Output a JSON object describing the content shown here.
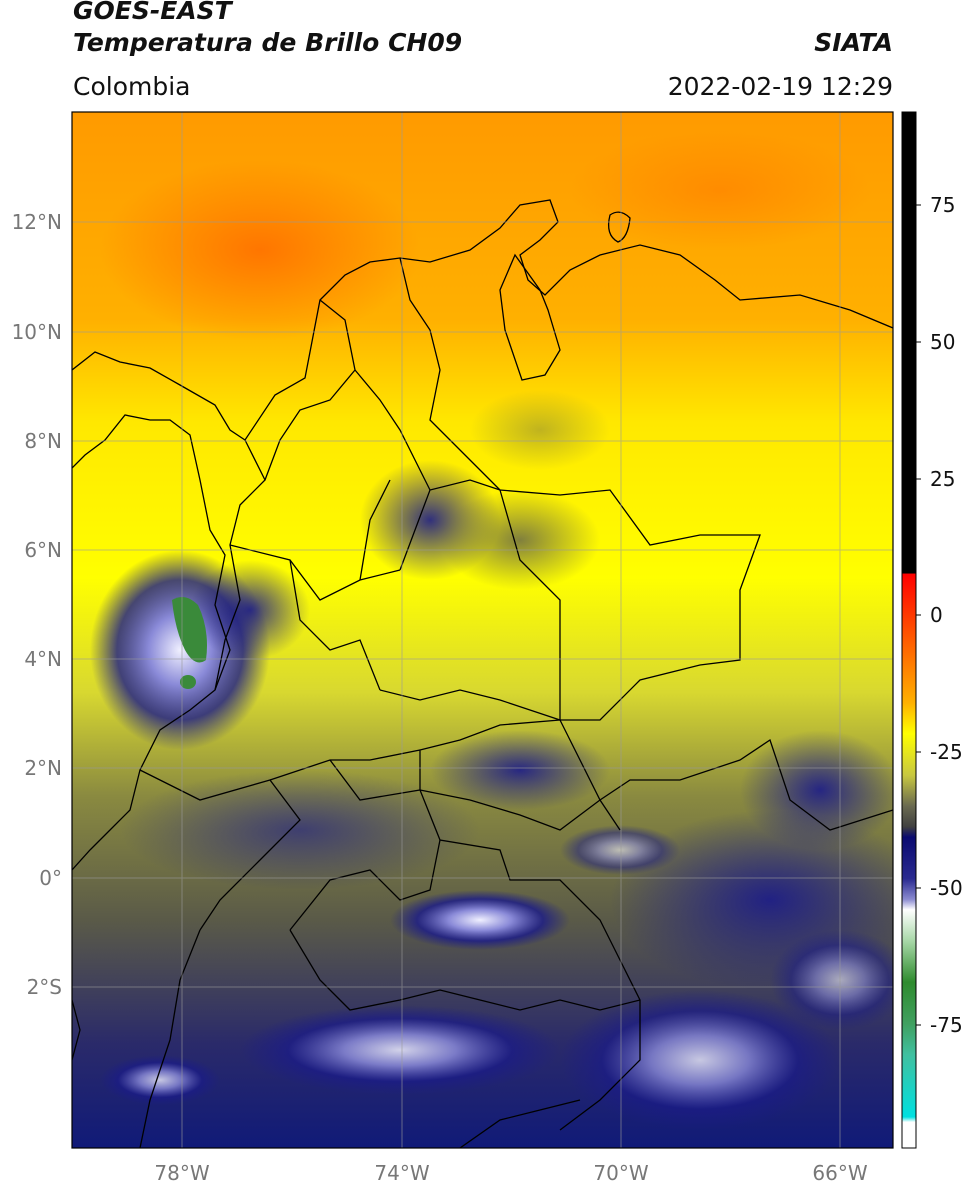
{
  "header": {
    "satellite": "GOES-EAST",
    "product": "Temperatura de Brillo CH09",
    "region": "Colombia",
    "organization": "SIATA",
    "timestamp": "2022-02-19 12:29"
  },
  "map": {
    "lon_ticks": [
      "78°W",
      "74°W",
      "70°W",
      "66°W"
    ],
    "lat_ticks": [
      "12°N",
      "10°N",
      "8°N",
      "6°N",
      "4°N",
      "2°N",
      "0°",
      "2°S"
    ],
    "colors": {
      "warm_orange": "#ff8c00",
      "mid_yellow": "#ffff00",
      "olive": "#7a7a3a",
      "deep_blue": "#0a1a7a",
      "cloud_white": "#eef0ff",
      "green": "#3a8a3a"
    }
  },
  "colorbar": {
    "labels": [
      "75",
      "50",
      "25",
      "0",
      "-25",
      "-50",
      "-75"
    ],
    "colors": [
      "#000000",
      "#ff0000",
      "#ff8c00",
      "#ffff00",
      "#5a5a50",
      "#101080",
      "#ffffff",
      "#2e8b2e",
      "#00e0e0"
    ]
  }
}
